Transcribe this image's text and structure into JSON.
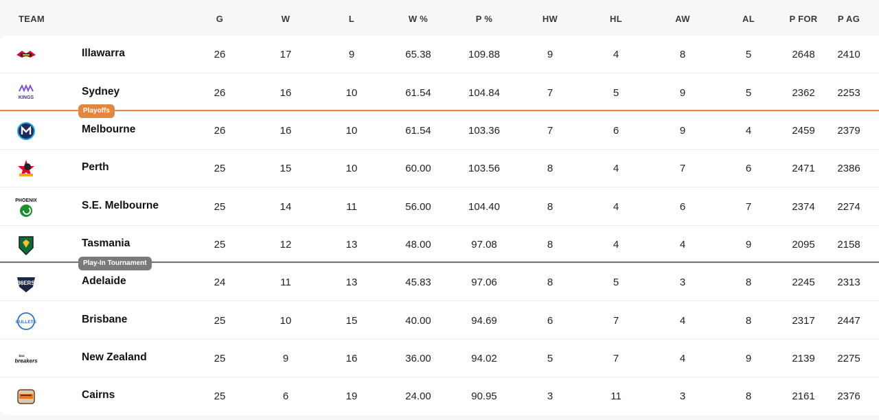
{
  "columns": [
    {
      "key": "team",
      "label": "TEAM"
    },
    {
      "key": "g",
      "label": "G"
    },
    {
      "key": "w",
      "label": "W"
    },
    {
      "key": "l",
      "label": "L"
    },
    {
      "key": "wpct",
      "label": "W %"
    },
    {
      "key": "ppct",
      "label": "P %"
    },
    {
      "key": "hw",
      "label": "HW"
    },
    {
      "key": "hl",
      "label": "HL"
    },
    {
      "key": "aw",
      "label": "AW"
    },
    {
      "key": "al",
      "label": "AL"
    },
    {
      "key": "pfor",
      "label": "P FOR"
    },
    {
      "key": "pag",
      "label": "P AG"
    }
  ],
  "rows": [
    {
      "team": "Illawarra",
      "logo": "hawks-logo",
      "g": "26",
      "w": "17",
      "l": "9",
      "wpct": "65.38",
      "ppct": "109.88",
      "hw": "9",
      "hl": "4",
      "aw": "8",
      "al": "5",
      "pfor": "2648",
      "pag": "2410"
    },
    {
      "team": "Sydney",
      "logo": "kings-logo",
      "g": "26",
      "w": "16",
      "l": "10",
      "wpct": "61.54",
      "ppct": "104.84",
      "hw": "7",
      "hl": "5",
      "aw": "9",
      "al": "5",
      "pfor": "2362",
      "pag": "2253"
    },
    {
      "team": "Melbourne",
      "logo": "united-logo",
      "g": "26",
      "w": "16",
      "l": "10",
      "wpct": "61.54",
      "ppct": "103.36",
      "hw": "7",
      "hl": "6",
      "aw": "9",
      "al": "4",
      "pfor": "2459",
      "pag": "2379"
    },
    {
      "team": "Perth",
      "logo": "wildcats-logo",
      "g": "25",
      "w": "15",
      "l": "10",
      "wpct": "60.00",
      "ppct": "103.56",
      "hw": "8",
      "hl": "4",
      "aw": "7",
      "al": "6",
      "pfor": "2471",
      "pag": "2386"
    },
    {
      "team": "S.E. Melbourne",
      "logo": "phoenix-logo",
      "g": "25",
      "w": "14",
      "l": "11",
      "wpct": "56.00",
      "ppct": "104.40",
      "hw": "8",
      "hl": "4",
      "aw": "6",
      "al": "7",
      "pfor": "2374",
      "pag": "2274"
    },
    {
      "team": "Tasmania",
      "logo": "jackjumpers-logo",
      "g": "25",
      "w": "12",
      "l": "13",
      "wpct": "48.00",
      "ppct": "97.08",
      "hw": "8",
      "hl": "4",
      "aw": "4",
      "al": "9",
      "pfor": "2095",
      "pag": "2158"
    },
    {
      "team": "Adelaide",
      "logo": "36ers-logo",
      "g": "24",
      "w": "11",
      "l": "13",
      "wpct": "45.83",
      "ppct": "97.06",
      "hw": "8",
      "hl": "5",
      "aw": "3",
      "al": "8",
      "pfor": "2245",
      "pag": "2313"
    },
    {
      "team": "Brisbane",
      "logo": "bullets-logo",
      "g": "25",
      "w": "10",
      "l": "15",
      "wpct": "40.00",
      "ppct": "94.69",
      "hw": "6",
      "hl": "7",
      "aw": "4",
      "al": "8",
      "pfor": "2317",
      "pag": "2447"
    },
    {
      "team": "New Zealand",
      "logo": "breakers-logo",
      "g": "25",
      "w": "9",
      "l": "16",
      "wpct": "36.00",
      "ppct": "94.02",
      "hw": "5",
      "hl": "7",
      "aw": "4",
      "al": "9",
      "pfor": "2139",
      "pag": "2275"
    },
    {
      "team": "Cairns",
      "logo": "taipans-logo",
      "g": "25",
      "w": "6",
      "l": "19",
      "wpct": "24.00",
      "ppct": "90.95",
      "hw": "3",
      "hl": "11",
      "aw": "3",
      "al": "8",
      "pfor": "2161",
      "pag": "2376"
    }
  ],
  "separators": {
    "playoffs": {
      "label": "Playoffs",
      "color": "#e2873f"
    },
    "playin": {
      "label": "Play-In Tournament",
      "color": "#7a7a7a"
    }
  },
  "logo_text": {
    "phoenix": "PHOENIX",
    "adelaide": "36ERS",
    "brisbane": "BULLETS",
    "breakers_top": "bnz",
    "breakers_main": "breakers",
    "sydney": "KINGS"
  }
}
